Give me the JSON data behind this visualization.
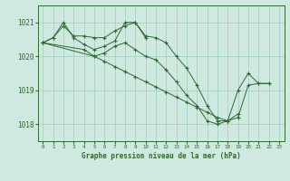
{
  "title": "Graphe pression niveau de la mer (hPa)",
  "background_color": "#cfe8e0",
  "grid_color": "#9ecfbe",
  "line_color": "#2d6a2d",
  "marker_color": "#2d6a2d",
  "ylim": [
    1017.5,
    1021.5
  ],
  "yticks": [
    1018,
    1019,
    1020,
    1021
  ],
  "xlim": [
    -0.5,
    23.5
  ],
  "xticks": [
    0,
    1,
    2,
    3,
    4,
    5,
    6,
    7,
    8,
    9,
    10,
    11,
    12,
    13,
    14,
    15,
    16,
    17,
    18,
    19,
    20,
    21,
    22,
    23
  ],
  "series": [
    [
      1020.4,
      1020.55,
      1020.9,
      1020.6,
      1020.6,
      1020.55,
      1020.55,
      1020.75,
      1020.9,
      1021.0,
      1020.6,
      1020.55,
      1020.4,
      1020.0,
      1019.65,
      1019.15,
      1018.55,
      1018.1,
      1018.1,
      1019.0,
      1019.5,
      1019.2,
      1019.2,
      null
    ],
    [
      1020.4,
      1020.55,
      1021.0,
      1020.55,
      1020.35,
      1020.2,
      1020.3,
      1020.45,
      1021.0,
      1021.0,
      1020.55,
      null,
      null,
      null,
      null,
      null,
      null,
      null,
      null,
      null,
      null,
      null,
      null,
      null
    ],
    [
      1020.4,
      null,
      null,
      null,
      1020.2,
      1020.0,
      1020.1,
      1020.3,
      1020.4,
      1020.2,
      1020.0,
      1019.9,
      1019.6,
      1019.25,
      1018.85,
      1018.55,
      1018.1,
      1018.0,
      1018.1,
      1018.3,
      null,
      null,
      null,
      null
    ],
    [
      1020.4,
      null,
      null,
      null,
      null,
      1020.0,
      1019.85,
      1019.7,
      1019.55,
      1019.4,
      1019.25,
      1019.1,
      1018.95,
      1018.8,
      1018.65,
      1018.5,
      1018.35,
      1018.2,
      1018.1,
      1018.2,
      1019.15,
      1019.2,
      1019.2,
      null
    ]
  ]
}
